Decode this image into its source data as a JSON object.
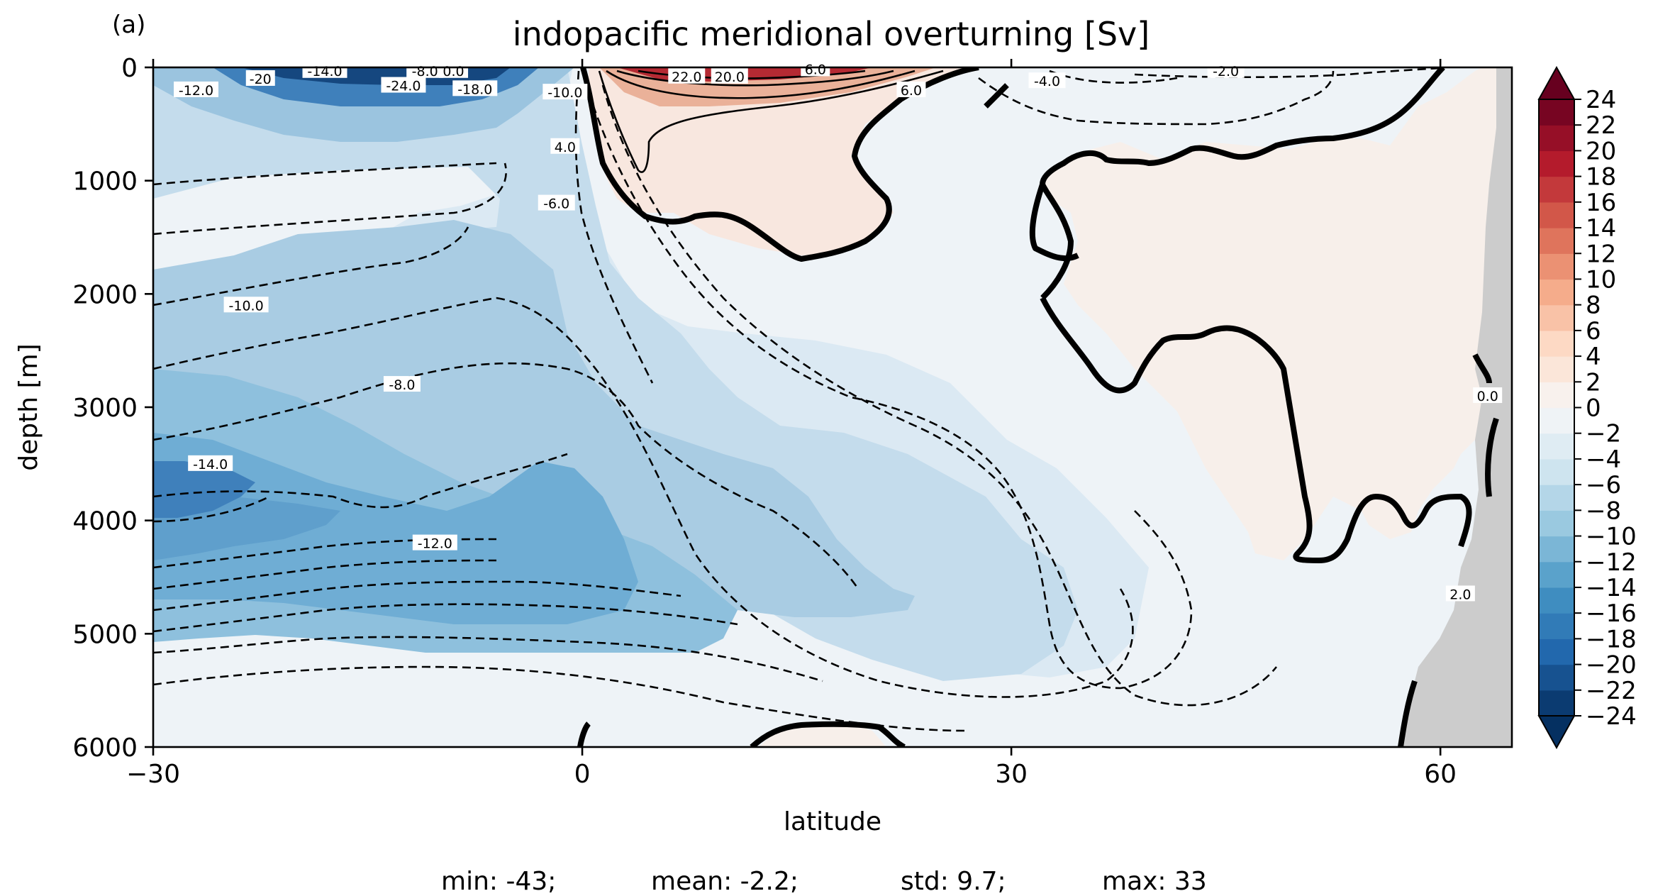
{
  "panel_label": "(a)",
  "chart_data": {
    "type": "contour",
    "title": "indopacific meridional overturning [Sv]",
    "xlabel": "latitude",
    "ylabel": "depth [m]",
    "xlim": [
      -30,
      65
    ],
    "ylim": [
      6000,
      0
    ],
    "xticks": [
      -30,
      0,
      30,
      60
    ],
    "yticks": [
      0,
      1000,
      2000,
      3000,
      4000,
      5000,
      6000
    ],
    "colorbar": {
      "cmap": "RdBu_r",
      "levels": [
        -24,
        -22,
        -20,
        -18,
        -16,
        -14,
        -12,
        -10,
        -8,
        -6,
        -4,
        -2,
        0,
        2,
        4,
        6,
        8,
        10,
        12,
        14,
        16,
        18,
        20,
        22,
        24
      ],
      "extend": "both"
    },
    "contour_labels": [
      {
        "text": "-12.0",
        "x": -27,
        "y": 200
      },
      {
        "text": "-20",
        "x": -22.5,
        "y": 100
      },
      {
        "text": "-14.0",
        "x": -18,
        "y": 30
      },
      {
        "text": "-8.0",
        "x": -11,
        "y": 30
      },
      {
        "text": "0.0",
        "x": -9,
        "y": 30
      },
      {
        "text": "-24.0",
        "x": -12.5,
        "y": 160
      },
      {
        "text": "-18.0",
        "x": -7.5,
        "y": 190
      },
      {
        "text": "-10.0",
        "x": -1.2,
        "y": 220
      },
      {
        "text": "4.0",
        "x": -1.2,
        "y": 700
      },
      {
        "text": "-6.0",
        "x": -1.8,
        "y": 1200
      },
      {
        "text": "22.0",
        "x": 7.3,
        "y": 80
      },
      {
        "text": "20.0",
        "x": 10.3,
        "y": 80
      },
      {
        "text": "6.0",
        "x": 16.3,
        "y": 15
      },
      {
        "text": "6.0",
        "x": 23,
        "y": 200
      },
      {
        "text": "-4.0",
        "x": 32.5,
        "y": 120
      },
      {
        "text": "-2.0",
        "x": 45,
        "y": 30
      },
      {
        "text": "-10.0",
        "x": -23.5,
        "y": 2100
      },
      {
        "text": "-8.0",
        "x": -12.6,
        "y": 2800
      },
      {
        "text": "-14.0",
        "x": -26,
        "y": 3500
      },
      {
        "text": "-12.0",
        "x": -10.3,
        "y": 4200
      },
      {
        "text": "0.0",
        "x": 63.3,
        "y": 2900
      },
      {
        "text": "2.0",
        "x": 61.4,
        "y": 4650
      }
    ]
  },
  "stats": {
    "min": "min: -43;",
    "mean": "mean: -2.2;",
    "std": "std: 9.7;",
    "max": "max: 33"
  }
}
